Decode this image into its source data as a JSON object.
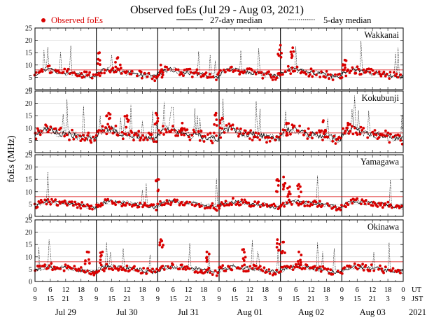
{
  "chart_data": {
    "type": "scatter",
    "title": "Observed foEs (Jul 29 - Aug 03, 2021)",
    "ylabel": "foEs (MHz)",
    "ylim": [
      0,
      25
    ],
    "yticks": [
      0,
      5,
      10,
      15,
      20,
      25
    ],
    "threshold_mhz": 8,
    "legend": {
      "observed": "Observed foEs",
      "median27": "27-day median",
      "median5": "5-day median",
      "colors": {
        "observed": "#d90000",
        "median27": "#000000",
        "median5": "#000000",
        "threshold": "#d90000"
      }
    },
    "x_axis": {
      "days": 6,
      "ut_hours": [
        "0",
        "6",
        "12",
        "18"
      ],
      "jst_hours": [
        "9",
        "15",
        "21",
        "3"
      ],
      "ut_last": "0",
      "jst_last": "9",
      "ut_label": "UT",
      "jst_label": "JST",
      "dates": [
        "Jul 29",
        "Jul 30",
        "Jul 31",
        "Aug 01",
        "Aug 02",
        "Aug 03"
      ],
      "year": "2021"
    },
    "stations": [
      {
        "name": "Wakkanai",
        "base": 6,
        "amp": 2.5,
        "noise": 1.8,
        "spike": 0.05,
        "seed": 11,
        "peaks": [
          {
            "day": 1.05,
            "val": 15
          },
          {
            "day": 1.35,
            "val": 13
          },
          {
            "day": 2.05,
            "val": 10
          },
          {
            "day": 4.0,
            "val": 18
          },
          {
            "day": 4.2,
            "val": 17
          },
          {
            "day": 5.05,
            "val": 12
          }
        ]
      },
      {
        "name": "Kokubunji",
        "base": 6.5,
        "amp": 3.5,
        "noise": 2.5,
        "spike": 0.08,
        "seed": 23,
        "peaks": [
          {
            "day": 1.2,
            "val": 16
          },
          {
            "day": 1.5,
            "val": 15
          },
          {
            "day": 1.97,
            "val": 16
          },
          {
            "day": 2.4,
            "val": 12
          },
          {
            "day": 2.95,
            "val": 16
          },
          {
            "day": 3.05,
            "val": 14
          },
          {
            "day": 4.1,
            "val": 12
          },
          {
            "day": 4.7,
            "val": 13
          },
          {
            "day": 5.1,
            "val": 12
          }
        ]
      },
      {
        "name": "Yamagawa",
        "base": 4.5,
        "amp": 1.8,
        "noise": 1.5,
        "spike": 0.03,
        "seed": 37,
        "peaks": [
          {
            "day": 2.0,
            "val": 15
          },
          {
            "day": 3.95,
            "val": 15
          },
          {
            "day": 4.05,
            "val": 16
          },
          {
            "day": 4.15,
            "val": 12
          },
          {
            "day": 4.3,
            "val": 13
          }
        ]
      },
      {
        "name": "Okinawa",
        "base": 4.5,
        "amp": 1.8,
        "noise": 1.6,
        "spike": 0.05,
        "seed": 53,
        "peaks": [
          {
            "day": 0.85,
            "val": 12
          },
          {
            "day": 1.1,
            "val": 12
          },
          {
            "day": 2.05,
            "val": 17
          },
          {
            "day": 2.8,
            "val": 12
          },
          {
            "day": 3.4,
            "val": 13
          },
          {
            "day": 3.95,
            "val": 17
          },
          {
            "day": 4.05,
            "val": 16
          },
          {
            "day": 4.3,
            "val": 12
          }
        ]
      }
    ]
  }
}
